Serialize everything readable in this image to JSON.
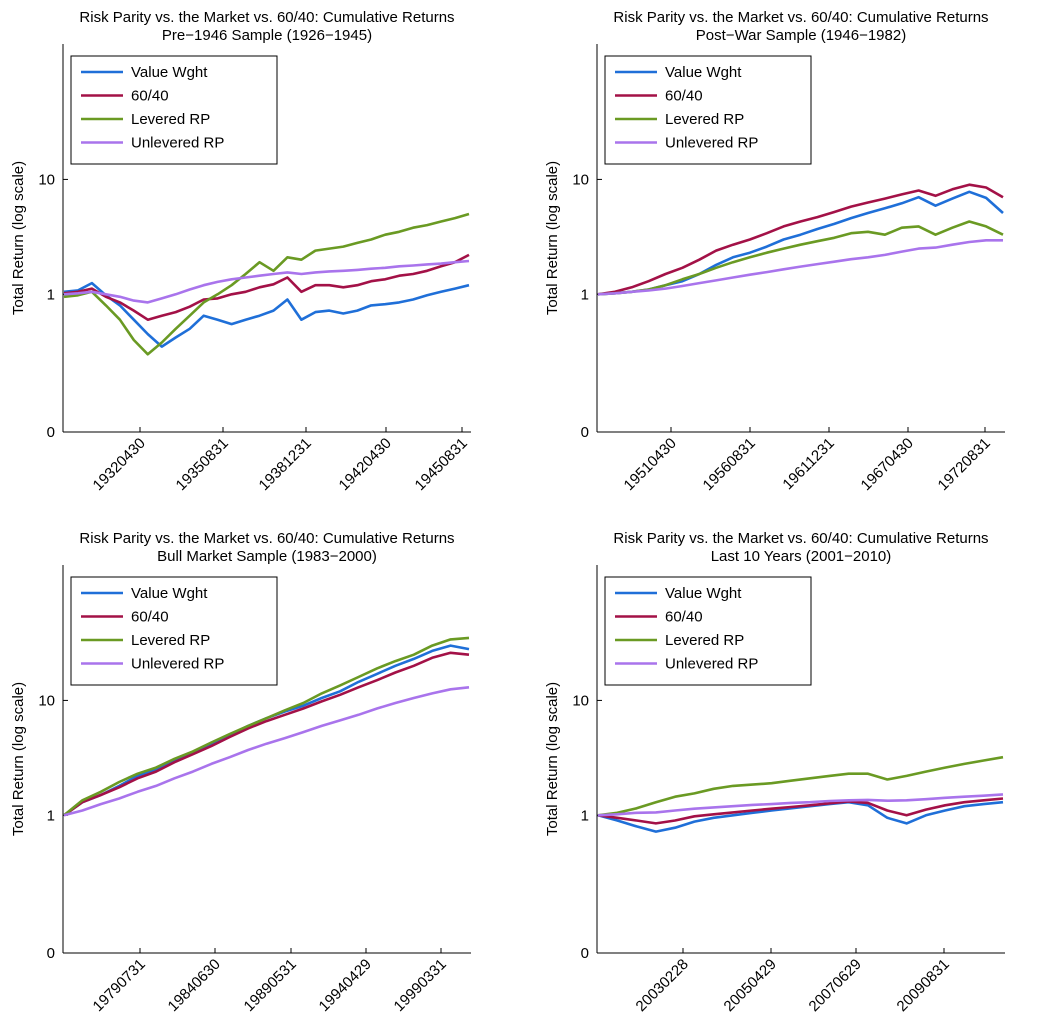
{
  "chart_data": [
    {
      "type": "line",
      "title": "Risk Parity vs. the Market vs. 60/40: Cumulative Returns",
      "subtitle": "Pre−1946 Sample (1926−1945)",
      "ylabel": "Total Return (log scale)",
      "yscale": "log",
      "yticks": [
        "0",
        "1",
        "10"
      ],
      "xticks": [
        "19320430",
        "19350831",
        "19381231",
        "19420430",
        "19450831"
      ],
      "legend_placement": "top-left",
      "series": [
        {
          "name": "Value Wght",
          "color": "#1f6fd8",
          "values": [
            1.05,
            1.08,
            1.25,
            0.98,
            0.8,
            0.6,
            0.45,
            0.35,
            0.42,
            0.5,
            0.65,
            0.6,
            0.55,
            0.6,
            0.65,
            0.72,
            0.9,
            0.6,
            0.7,
            0.72,
            0.68,
            0.72,
            0.8,
            0.82,
            0.85,
            0.9,
            0.98,
            1.05,
            1.12,
            1.2
          ]
        },
        {
          "name": "60/40",
          "color": "#a31147",
          "values": [
            1.02,
            1.05,
            1.12,
            0.95,
            0.85,
            0.72,
            0.6,
            0.65,
            0.7,
            0.78,
            0.9,
            0.92,
            1.0,
            1.05,
            1.15,
            1.22,
            1.4,
            1.05,
            1.2,
            1.2,
            1.15,
            1.2,
            1.3,
            1.35,
            1.45,
            1.5,
            1.6,
            1.75,
            1.9,
            2.2
          ]
        },
        {
          "name": "Levered RP",
          "color": "#6a9a23",
          "values": [
            0.95,
            0.98,
            1.05,
            0.8,
            0.6,
            0.4,
            0.3,
            0.38,
            0.5,
            0.65,
            0.85,
            1.0,
            1.2,
            1.5,
            1.9,
            1.6,
            2.1,
            2.0,
            2.4,
            2.5,
            2.6,
            2.8,
            3.0,
            3.3,
            3.5,
            3.8,
            4.0,
            4.3,
            4.6,
            5.0
          ]
        },
        {
          "name": "Unlevered RP",
          "color": "#a974ec",
          "values": [
            1.0,
            1.02,
            1.05,
            1.0,
            0.95,
            0.88,
            0.85,
            0.92,
            1.0,
            1.1,
            1.2,
            1.28,
            1.35,
            1.4,
            1.45,
            1.5,
            1.55,
            1.5,
            1.55,
            1.58,
            1.6,
            1.63,
            1.67,
            1.7,
            1.75,
            1.78,
            1.82,
            1.85,
            1.9,
            1.95
          ]
        }
      ]
    },
    {
      "type": "line",
      "title": "Risk Parity vs. the Market vs. 60/40: Cumulative Returns",
      "subtitle": "Post−War Sample (1946−1982)",
      "ylabel": "Total Return (log scale)",
      "yscale": "log",
      "yticks": [
        "0",
        "1",
        "10"
      ],
      "xticks": [
        "19510430",
        "19560831",
        "19611231",
        "19670430",
        "19720831"
      ],
      "legend_placement": "top-left",
      "series": [
        {
          "name": "Value Wght",
          "color": "#1f6fd8",
          "values": [
            1.0,
            1.02,
            1.05,
            1.1,
            1.2,
            1.3,
            1.5,
            1.8,
            2.1,
            2.3,
            2.6,
            3.0,
            3.3,
            3.7,
            4.1,
            4.6,
            5.1,
            5.6,
            6.2,
            7.0,
            5.9,
            6.8,
            7.8,
            6.9,
            5.1
          ]
        },
        {
          "name": "60/40",
          "color": "#a31147",
          "values": [
            1.0,
            1.05,
            1.15,
            1.3,
            1.5,
            1.7,
            2.0,
            2.4,
            2.7,
            3.0,
            3.4,
            3.9,
            4.3,
            4.7,
            5.2,
            5.8,
            6.3,
            6.8,
            7.4,
            8.0,
            7.2,
            8.2,
            9.0,
            8.5,
            7.0
          ]
        },
        {
          "name": "Levered RP",
          "color": "#6a9a23",
          "values": [
            1.0,
            1.02,
            1.05,
            1.1,
            1.2,
            1.35,
            1.5,
            1.7,
            1.9,
            2.1,
            2.3,
            2.5,
            2.7,
            2.9,
            3.1,
            3.4,
            3.5,
            3.3,
            3.8,
            3.9,
            3.3,
            3.8,
            4.3,
            3.9,
            3.3
          ]
        },
        {
          "name": "Unlevered RP",
          "color": "#a974ec",
          "values": [
            1.0,
            1.02,
            1.05,
            1.08,
            1.12,
            1.18,
            1.25,
            1.32,
            1.4,
            1.48,
            1.56,
            1.65,
            1.74,
            1.83,
            1.92,
            2.02,
            2.1,
            2.2,
            2.35,
            2.5,
            2.55,
            2.7,
            2.85,
            2.95,
            2.95
          ]
        }
      ]
    },
    {
      "type": "line",
      "title": "Risk Parity vs. the Market vs. 60/40: Cumulative Returns",
      "subtitle": "Bull Market Sample (1983−2000)",
      "ylabel": "Total Return (log scale)",
      "yscale": "log",
      "yticks": [
        "0",
        "1",
        "10"
      ],
      "xticks": [
        "19790731",
        "19840630",
        "19890531",
        "19940429",
        "19990331"
      ],
      "legend_placement": "top-left",
      "series": [
        {
          "name": "Value Wght",
          "color": "#1f6fd8",
          "values": [
            1.0,
            1.3,
            1.5,
            1.8,
            2.2,
            2.5,
            3.0,
            3.5,
            4.2,
            5.0,
            6.0,
            7.0,
            8.0,
            9.0,
            10.5,
            12.0,
            14.5,
            17.0,
            20.0,
            23.0,
            27.0,
            30.0,
            28.0
          ]
        },
        {
          "name": "60/40",
          "color": "#a31147",
          "values": [
            1.0,
            1.3,
            1.5,
            1.75,
            2.1,
            2.4,
            2.9,
            3.4,
            4.0,
            4.8,
            5.7,
            6.6,
            7.5,
            8.5,
            9.8,
            11.2,
            13.0,
            15.0,
            17.5,
            20.0,
            23.5,
            26.0,
            25.0
          ]
        },
        {
          "name": "Levered RP",
          "color": "#6a9a23",
          "values": [
            1.0,
            1.35,
            1.6,
            1.95,
            2.3,
            2.6,
            3.1,
            3.6,
            4.3,
            5.1,
            6.0,
            7.0,
            8.2,
            9.5,
            11.5,
            13.5,
            16.0,
            19.0,
            22.0,
            25.0,
            30.0,
            34.0,
            35.0
          ]
        },
        {
          "name": "Unlevered RP",
          "color": "#a974ec",
          "values": [
            1.0,
            1.1,
            1.25,
            1.4,
            1.6,
            1.8,
            2.1,
            2.4,
            2.8,
            3.2,
            3.7,
            4.2,
            4.7,
            5.3,
            6.0,
            6.7,
            7.5,
            8.5,
            9.5,
            10.5,
            11.5,
            12.5,
            13.0
          ]
        }
      ]
    },
    {
      "type": "line",
      "title": "Risk Parity vs. the Market vs. 60/40: Cumulative Returns",
      "subtitle": "Last 10 Years (2001−2010)",
      "ylabel": "Total Return (log scale)",
      "yscale": "log",
      "yticks": [
        "0",
        "1",
        "10"
      ],
      "xticks": [
        "20030228",
        "20050429",
        "20070629",
        "20090831"
      ],
      "legend_placement": "top-left",
      "series": [
        {
          "name": "Value Wght",
          "color": "#1f6fd8",
          "values": [
            1.0,
            0.9,
            0.8,
            0.72,
            0.78,
            0.88,
            0.95,
            1.0,
            1.05,
            1.1,
            1.15,
            1.2,
            1.25,
            1.3,
            1.22,
            0.95,
            0.85,
            1.0,
            1.1,
            1.2,
            1.25,
            1.3
          ]
        },
        {
          "name": "60/40",
          "color": "#a31147",
          "values": [
            1.0,
            0.95,
            0.9,
            0.85,
            0.9,
            0.98,
            1.02,
            1.06,
            1.1,
            1.14,
            1.18,
            1.22,
            1.27,
            1.32,
            1.28,
            1.1,
            1.0,
            1.12,
            1.22,
            1.3,
            1.35,
            1.4
          ]
        },
        {
          "name": "Levered RP",
          "color": "#6a9a23",
          "values": [
            1.0,
            1.05,
            1.15,
            1.3,
            1.45,
            1.55,
            1.7,
            1.8,
            1.85,
            1.9,
            2.0,
            2.1,
            2.2,
            2.3,
            2.3,
            2.05,
            2.2,
            2.4,
            2.6,
            2.8,
            3.0,
            3.2
          ]
        },
        {
          "name": "Unlevered RP",
          "color": "#a974ec",
          "values": [
            1.0,
            1.02,
            1.05,
            1.06,
            1.1,
            1.14,
            1.17,
            1.2,
            1.23,
            1.25,
            1.28,
            1.3,
            1.33,
            1.35,
            1.36,
            1.34,
            1.35,
            1.38,
            1.42,
            1.45,
            1.48,
            1.52
          ]
        }
      ]
    }
  ]
}
